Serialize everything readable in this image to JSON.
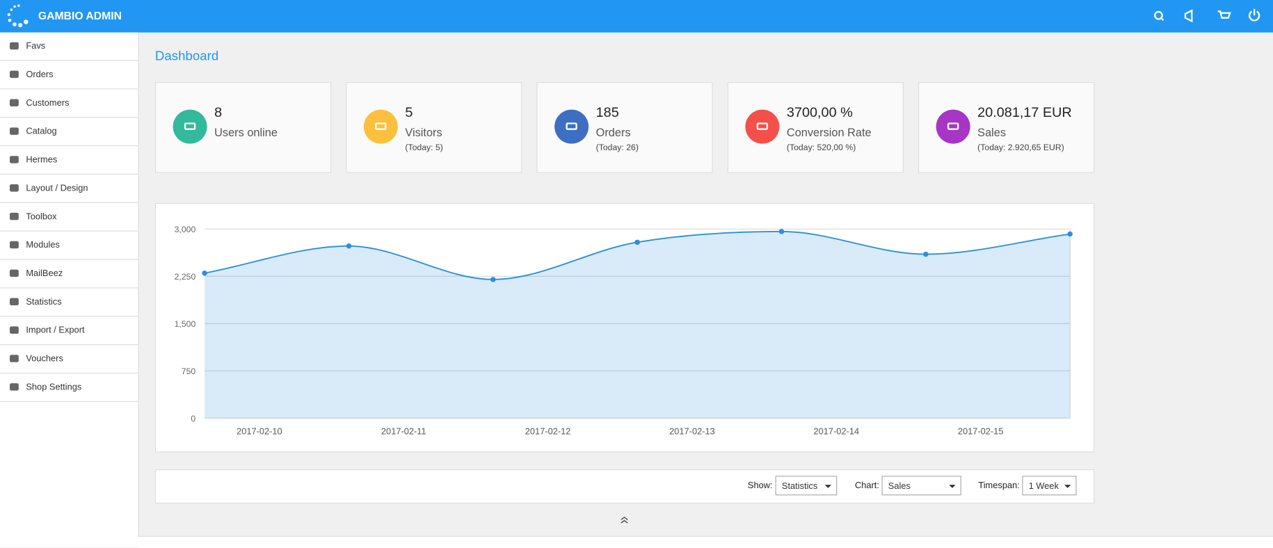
{
  "header": {
    "title": "GAMBIO ADMIN"
  },
  "menu": [
    "Favs",
    "Orders",
    "Customers",
    "Catalog",
    "Hermes",
    "Layout / Design",
    "Toolbox",
    "Modules",
    "MailBeez",
    "Statistics",
    "Import / Export",
    "Vouchers",
    "Shop Settings"
  ],
  "page_title": "Dashboard",
  "cards": [
    {
      "value": "8",
      "label": "Users online",
      "color": "#33b99c"
    },
    {
      "value": "5",
      "label": "Visitors",
      "note": "(Today: 5)",
      "color": "#fcc03e"
    },
    {
      "value": "185",
      "label": "Orders",
      "note": "(Today: 26)",
      "color": "#3c6fc2"
    },
    {
      "value": "3700,00 %",
      "label": "Conversion Rate",
      "note": "(Today: 520,00 %)",
      "color": "#f4504a"
    },
    {
      "value": "20.081,17 EUR",
      "label": "Sales",
      "note": "(Today: 2.920,65 EUR)",
      "color": "#a636c3"
    }
  ],
  "chart_data": {
    "type": "area",
    "x": [
      0,
      1,
      2,
      3,
      4,
      5,
      6
    ],
    "series": [
      {
        "color": "#2a8fe0",
        "values": [
          2300,
          2730,
          2200,
          2790,
          2960,
          2600,
          2920
        ]
      }
    ],
    "xlim": [
      0,
      6
    ],
    "xticks": [
      {
        "value": 0.38,
        "label": "2017-02-10"
      },
      {
        "value": 1.38,
        "label": "2017-02-11"
      },
      {
        "value": 2.38,
        "label": "2017-02-12"
      },
      {
        "value": 3.38,
        "label": "2017-02-13"
      },
      {
        "value": 4.38,
        "label": "2017-02-14"
      },
      {
        "value": 5.38,
        "label": "2017-02-15"
      }
    ],
    "ylim": [
      0,
      3000
    ],
    "yticks": [
      0,
      750,
      {
        "value": 1500,
        "label": "1,500"
      },
      {
        "value": 2250,
        "label": "2,250"
      },
      {
        "value": 3000,
        "label": "3,000"
      }
    ],
    "grid": true
  },
  "filters": [
    {
      "label": "Show:",
      "value": "Statistics"
    },
    {
      "label": "Chart:",
      "value": "Sales"
    },
    {
      "label": "Timespan:",
      "value": "1 Week"
    }
  ]
}
